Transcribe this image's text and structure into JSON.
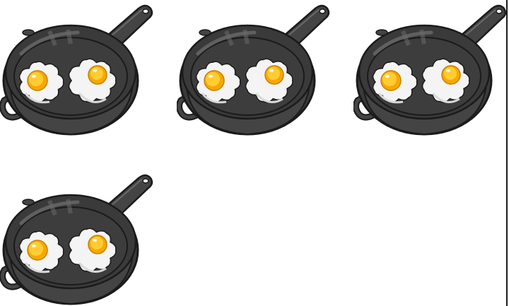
{
  "scene": {
    "object": "frying-pan-with-eggs",
    "pans": [
      {
        "eggs": 2
      },
      {
        "eggs": 2
      },
      {
        "eggs": 2
      },
      {
        "eggs": 2
      }
    ]
  },
  "colors": {
    "pan_rim": "#3a3a3a",
    "pan_body": "#444444",
    "pan_inner": "#3d3d3d",
    "pan_highlight": "#6a6a6a",
    "outline": "#1b1b1b",
    "egg_white": "#f4f4f4",
    "egg_shadow": "#d9d9d9",
    "yolk_outer": "#f6a800",
    "yolk_inner": "#ffcc33"
  }
}
